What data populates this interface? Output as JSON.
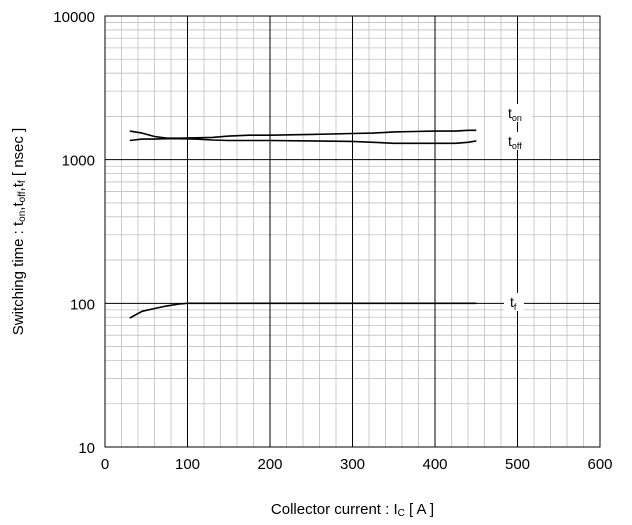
{
  "chart_data": {
    "type": "line",
    "xlabel_parts": {
      "main": "Collector current : I",
      "sub": "C",
      "tail": " [ A ]"
    },
    "ylabel_parts": [
      {
        "text": "Switching time : t",
        "sub": false
      },
      {
        "text": "on",
        "sub": true
      },
      {
        "text": ",t",
        "sub": false
      },
      {
        "text": "off",
        "sub": true
      },
      {
        "text": ",t",
        "sub": false
      },
      {
        "text": "f",
        "sub": true
      },
      {
        "text": " [ nsec ]",
        "sub": false
      }
    ],
    "xlim": [
      0,
      600
    ],
    "ylim": [
      10,
      10000
    ],
    "yscale": "log",
    "grid": true,
    "x_ticks": [
      0,
      100,
      200,
      300,
      400,
      500,
      600
    ],
    "x_tick_labels": [
      "0",
      "100",
      "200",
      "300",
      "400",
      "500",
      "600"
    ],
    "y_ticks": [
      10,
      100,
      1000,
      10000
    ],
    "y_tick_labels": [
      "10",
      "100",
      "1000",
      "10000"
    ],
    "series": [
      {
        "name": "t_on",
        "label": {
          "main": "t",
          "sub": "on"
        },
        "x": [
          30,
          45,
          60,
          75,
          90,
          110,
          130,
          150,
          175,
          200,
          250,
          300,
          325,
          350,
          375,
          400,
          425,
          440,
          450
        ],
        "y": [
          1580,
          1530,
          1450,
          1410,
          1410,
          1420,
          1430,
          1460,
          1480,
          1480,
          1500,
          1520,
          1530,
          1560,
          1570,
          1580,
          1580,
          1600,
          1600
        ]
      },
      {
        "name": "t_off",
        "label": {
          "main": "t",
          "sub": "off"
        },
        "x": [
          30,
          45,
          60,
          75,
          90,
          110,
          130,
          150,
          175,
          200,
          250,
          300,
          325,
          350,
          375,
          400,
          425,
          440,
          450
        ],
        "y": [
          1360,
          1390,
          1390,
          1400,
          1400,
          1390,
          1370,
          1360,
          1360,
          1360,
          1350,
          1340,
          1320,
          1300,
          1300,
          1300,
          1300,
          1320,
          1350
        ]
      },
      {
        "name": "t_f",
        "label": {
          "main": "t",
          "sub": "f"
        },
        "x": [
          30,
          45,
          60,
          75,
          90,
          100,
          150,
          200,
          300,
          400,
          450
        ],
        "y": [
          79,
          88,
          92,
          96,
          99,
          100,
          100,
          100,
          100,
          100,
          100
        ]
      }
    ]
  }
}
